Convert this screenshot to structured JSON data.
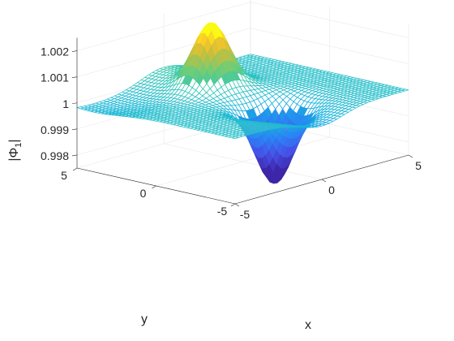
{
  "chart_data": {
    "type": "surface",
    "title": "",
    "xlabel": "x",
    "ylabel": "y",
    "zlabel": "|Φ₁|",
    "zlabel_main": "|Φ",
    "zlabel_sub": "1",
    "zlabel_close": "|",
    "xlim": [
      -5,
      5
    ],
    "ylim": [
      -5,
      5
    ],
    "zlim": [
      0.9975,
      1.0025
    ],
    "x_ticks": [
      -5,
      0,
      5
    ],
    "y_ticks": [
      -5,
      0,
      5
    ],
    "z_ticks": [
      0.998,
      0.999,
      1,
      1.001,
      1.002
    ],
    "x_tick_labels": [
      "-5",
      "0",
      "5"
    ],
    "y_tick_labels": [
      "-5",
      "0",
      "5"
    ],
    "z_tick_labels": [
      "0.998",
      "0.999",
      "1",
      "1.001",
      "1.002"
    ],
    "grid": true,
    "colormap": "parula",
    "surface_style": "mesh",
    "baseline": 1.0,
    "features": [
      {
        "name": "peak",
        "x": 0.0,
        "y": 2.0,
        "z": 1.0022
      },
      {
        "name": "dip",
        "x": 0.0,
        "y": -2.0,
        "z": 0.9973
      }
    ],
    "colors": {
      "axis": "#262626",
      "grid": "#e4e4e4",
      "background": "#ffffff"
    }
  }
}
